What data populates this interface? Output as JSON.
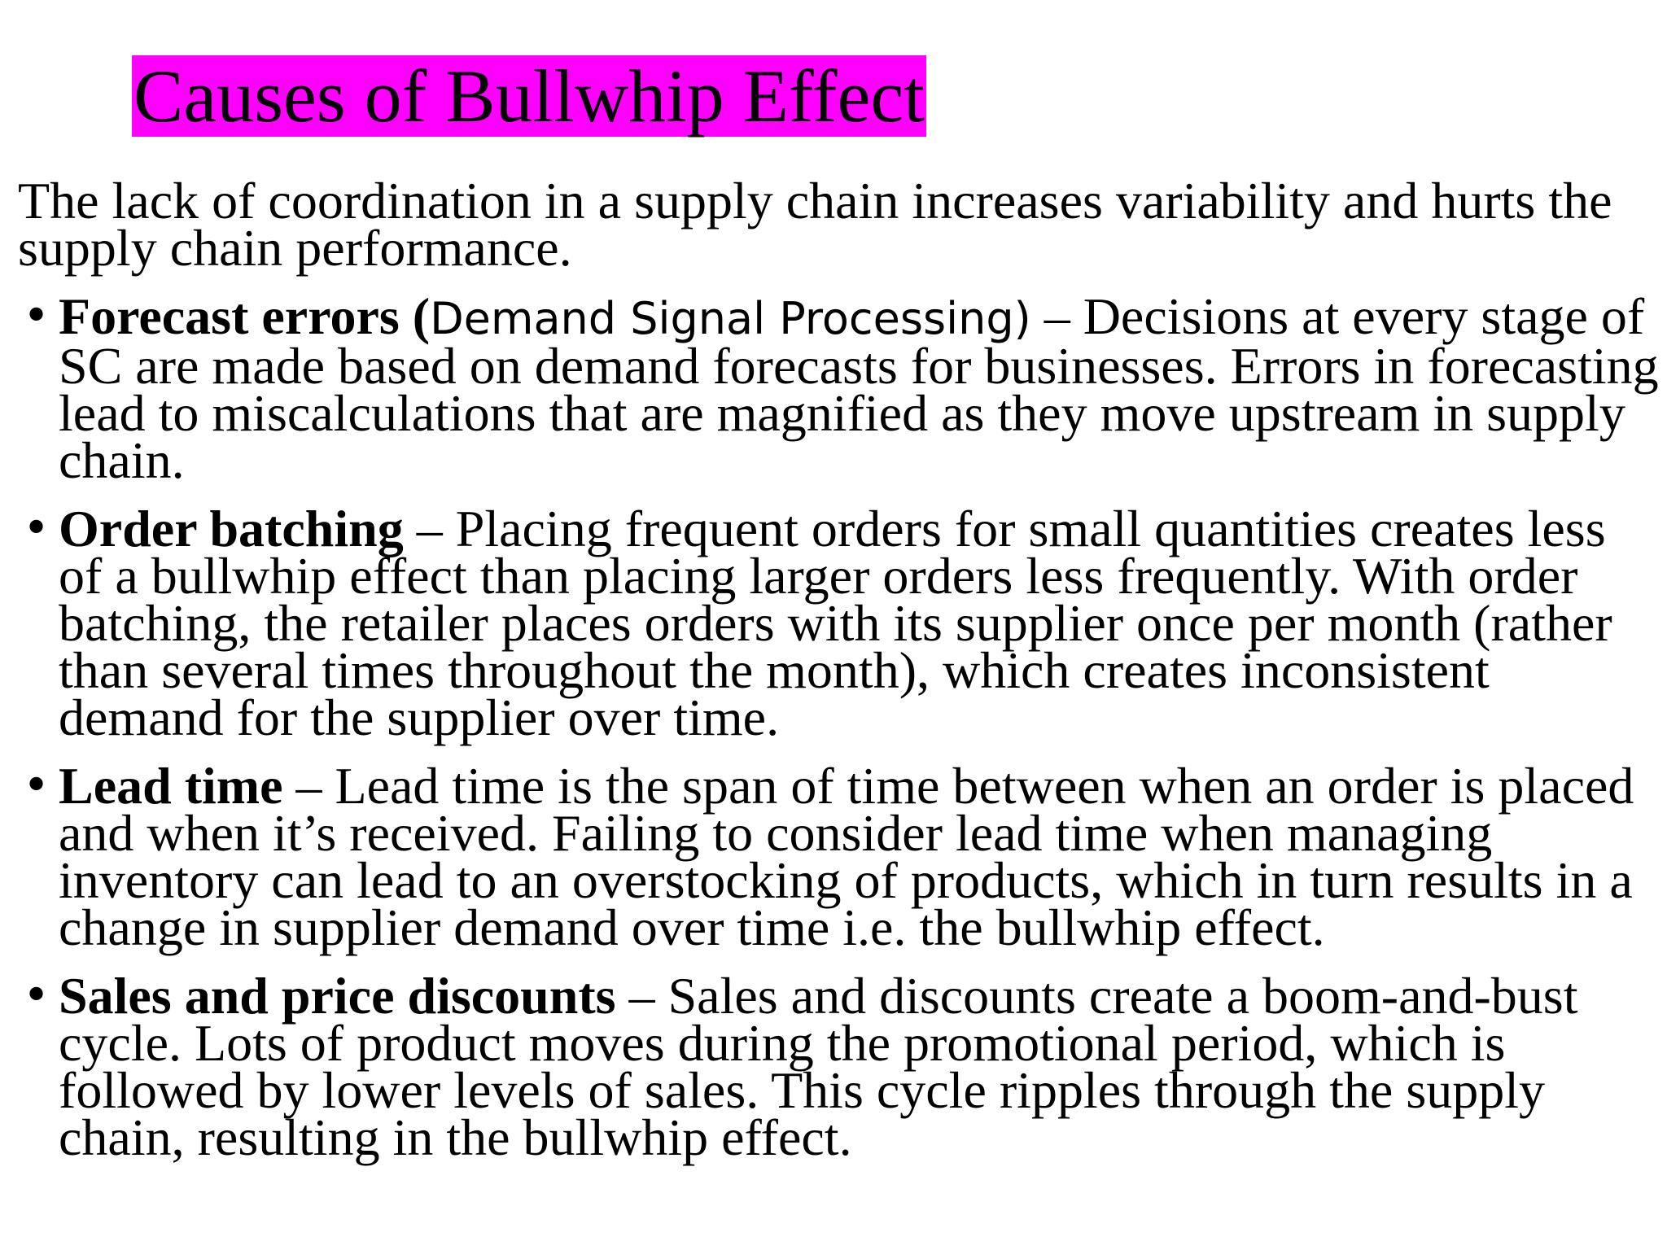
{
  "slide": {
    "title": "Causes of Bullwhip Effect",
    "intro": "The lack of coordination in a supply chain increases variability and hurts the supply chain performance.",
    "bullets": [
      {
        "term": "Forecast errors (",
        "sub_term": "Demand Signal Processing)",
        "text": " – Decisions at every stage of SC are made based on demand forecasts for businesses. Errors in forecasting lead to miscalculations that are magnified as they move upstream in supply chain."
      },
      {
        "term": "Order batching",
        "text": " – Placing frequent orders for small quantities creates less of a bullwhip effect than placing larger orders less frequently. With order batching, the retailer places orders with its supplier once per month (rather than several times throughout the month), which creates inconsistent demand for the supplier over time."
      },
      {
        "term": "Lead time",
        "text": " – Lead time is the span of time between when an order is placed and when it’s received. Failing to consider lead time when managing inventory can lead to an overstocking of products, which in turn results in a change in supplier demand over time i.e. the bullwhip effect."
      },
      {
        "term": "Sales and price discounts",
        "text": " – Sales and discounts create a boom-and-bust cycle. Lots of product moves during the promotional period, which is followed by lower levels of sales. This cycle ripples through the supply chain, resulting in the bullwhip effect."
      }
    ],
    "bullet_symbol": "•",
    "colors": {
      "title_highlight": "#ff00ff",
      "text": "#000000",
      "background": "#ffffff"
    }
  }
}
